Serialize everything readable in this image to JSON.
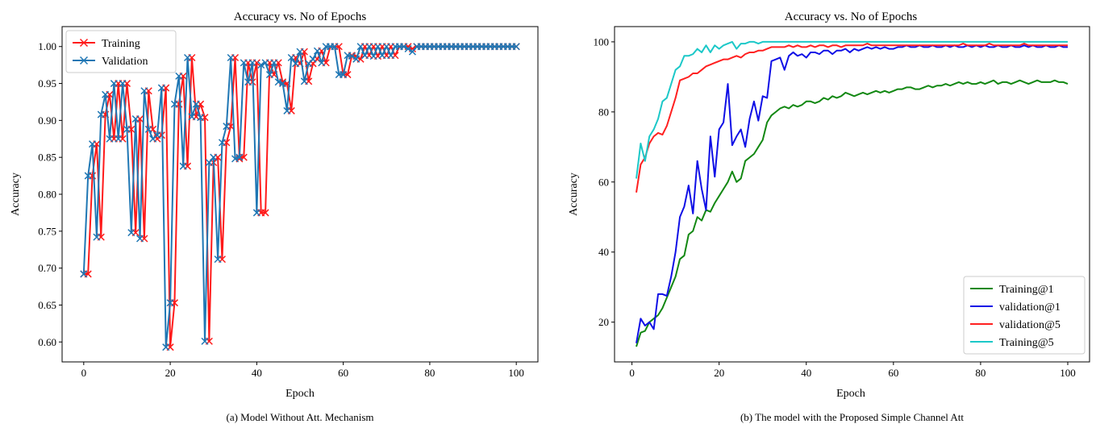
{
  "chart_data": [
    {
      "type": "line",
      "title": "Accuracy vs. No of Epochs",
      "xlabel": "Epoch",
      "ylabel": "Accuracy",
      "xlim": [
        -5,
        105
      ],
      "ylim": [
        0.573,
        1.027
      ],
      "xticks": [
        0,
        20,
        40,
        60,
        80,
        100
      ],
      "yticks": [
        0.6,
        0.65,
        0.7,
        0.75,
        0.8,
        0.85,
        0.9,
        0.95,
        1.0
      ],
      "ytick_labels": [
        "0.60",
        "0.65",
        "0.70",
        "0.75",
        "0.80",
        "0.85",
        "0.90",
        "0.95",
        "1.00"
      ],
      "grid": false,
      "legend_position": "top-left",
      "caption": "(a) Model Without Att. Mechanism",
      "x": [
        0,
        1,
        2,
        3,
        4,
        5,
        6,
        7,
        8,
        9,
        10,
        11,
        12,
        13,
        14,
        15,
        16,
        17,
        18,
        19,
        20,
        21,
        22,
        23,
        24,
        25,
        26,
        27,
        28,
        29,
        30,
        31,
        32,
        33,
        34,
        35,
        36,
        37,
        38,
        39,
        40,
        41,
        42,
        43,
        44,
        45,
        46,
        47,
        48,
        49,
        50,
        51,
        52,
        53,
        54,
        55,
        56,
        57,
        58,
        59,
        60,
        61,
        62,
        63,
        64,
        65,
        66,
        67,
        68,
        69,
        70,
        71,
        72,
        73,
        74,
        75,
        76,
        77,
        78,
        79,
        80,
        81,
        82,
        83,
        84,
        85,
        86,
        87,
        88,
        89,
        90,
        91,
        92,
        93,
        94,
        95,
        96,
        97,
        98,
        99,
        100
      ],
      "series": [
        {
          "name": "Training",
          "color": "#ff1a1a",
          "marker": "x",
          "values": [
            0.692,
            0.692,
            0.825,
            0.868,
            0.742,
            0.908,
            0.935,
            0.875,
            0.95,
            0.875,
            0.95,
            0.888,
            0.748,
            0.902,
            0.74,
            0.94,
            0.888,
            0.875,
            0.88,
            0.944,
            0.593,
            0.653,
            0.922,
            0.96,
            0.838,
            0.985,
            0.905,
            0.922,
            0.904,
            0.601,
            0.843,
            0.85,
            0.712,
            0.87,
            0.892,
            0.985,
            0.848,
            0.85,
            0.978,
            0.952,
            0.978,
            0.775,
            0.775,
            0.978,
            0.962,
            0.978,
            0.952,
            0.95,
            0.913,
            0.985,
            0.977,
            0.993,
            0.953,
            0.977,
            0.983,
            0.994,
            0.978,
            1.0,
            1.0,
            1.0,
            0.962,
            0.962,
            0.988,
            0.987,
            0.983,
            1.0,
            0.988,
            1.0,
            0.987,
            1.0,
            0.988,
            1.0,
            0.988,
            1.0,
            1.0,
            1.0,
            0.997,
            1.0,
            1.0,
            1.0,
            1.0,
            1.0,
            1.0,
            1.0,
            1.0,
            1.0,
            1.0,
            1.0,
            1.0,
            1.0,
            1.0,
            1.0,
            1.0,
            1.0,
            1.0,
            1.0,
            1.0,
            1.0,
            1.0,
            1.0,
            1.0
          ]
        },
        {
          "name": "Validation",
          "color": "#1f77b4",
          "marker": "x",
          "values": [
            0.692,
            0.825,
            0.868,
            0.742,
            0.908,
            0.935,
            0.875,
            0.95,
            0.875,
            0.95,
            0.888,
            0.748,
            0.902,
            0.74,
            0.94,
            0.888,
            0.875,
            0.88,
            0.944,
            0.593,
            0.653,
            0.922,
            0.96,
            0.838,
            0.985,
            0.905,
            0.922,
            0.904,
            0.601,
            0.843,
            0.85,
            0.712,
            0.87,
            0.892,
            0.985,
            0.848,
            0.85,
            0.978,
            0.952,
            0.978,
            0.775,
            0.975,
            0.978,
            0.962,
            0.978,
            0.952,
            0.95,
            0.913,
            0.985,
            0.977,
            0.993,
            0.953,
            0.977,
            0.983,
            0.994,
            0.978,
            1.0,
            1.0,
            1.0,
            0.962,
            0.962,
            0.988,
            0.987,
            0.983,
            1.0,
            0.988,
            1.0,
            0.987,
            1.0,
            0.988,
            1.0,
            0.988,
            1.0,
            1.0,
            1.0,
            0.997,
            0.993,
            1.0,
            1.0,
            1.0,
            1.0,
            1.0,
            1.0,
            1.0,
            1.0,
            1.0,
            1.0,
            1.0,
            1.0,
            1.0,
            1.0,
            1.0,
            1.0,
            1.0,
            1.0,
            1.0,
            1.0,
            1.0,
            1.0,
            1.0,
            1.0
          ]
        }
      ]
    },
    {
      "type": "line",
      "title": "Accuracy vs. No of Epochs",
      "xlabel": "Epoch",
      "ylabel": "Accuracy",
      "xlim": [
        -4,
        105
      ],
      "ylim": [
        8.65,
        104.35
      ],
      "xticks": [
        0,
        20,
        40,
        60,
        80,
        100
      ],
      "yticks": [
        20,
        40,
        60,
        80,
        100
      ],
      "ytick_labels": [
        "20",
        "40",
        "60",
        "80",
        "100"
      ],
      "grid": false,
      "legend_position": "bottom-right",
      "caption": "(b) The model with the Proposed Simple Channel Att",
      "x": [
        1,
        2,
        3,
        4,
        5,
        6,
        7,
        8,
        9,
        10,
        11,
        12,
        13,
        14,
        15,
        16,
        17,
        18,
        19,
        20,
        21,
        22,
        23,
        24,
        25,
        26,
        27,
        28,
        29,
        30,
        31,
        32,
        33,
        34,
        35,
        36,
        37,
        38,
        39,
        40,
        41,
        42,
        43,
        44,
        45,
        46,
        47,
        48,
        49,
        50,
        51,
        52,
        53,
        54,
        55,
        56,
        57,
        58,
        59,
        60,
        61,
        62,
        63,
        64,
        65,
        66,
        67,
        68,
        69,
        70,
        71,
        72,
        73,
        74,
        75,
        76,
        77,
        78,
        79,
        80,
        81,
        82,
        83,
        84,
        85,
        86,
        87,
        88,
        89,
        90,
        91,
        92,
        93,
        94,
        95,
        96,
        97,
        98,
        99,
        100
      ],
      "series": [
        {
          "name": "Training@1",
          "color": "#128812",
          "values": [
            13,
            17,
            17.5,
            20,
            21,
            22,
            24,
            27,
            30,
            33,
            38,
            39,
            45,
            46,
            50,
            49,
            52,
            51.5,
            54,
            56,
            58,
            60,
            63,
            60,
            61,
            66,
            67,
            68,
            70,
            72,
            77,
            79,
            80,
            81,
            81.5,
            81,
            82,
            81.5,
            82,
            83,
            83,
            82.5,
            83,
            84,
            83.5,
            84.5,
            84,
            84.5,
            85.5,
            85,
            84.5,
            85,
            85.5,
            85,
            85.5,
            86,
            85.5,
            86,
            85.5,
            86,
            86.5,
            86.5,
            87,
            87,
            86.5,
            86.5,
            87,
            87.5,
            87,
            87.5,
            87.5,
            88,
            87.5,
            88,
            88.5,
            88,
            88.5,
            88,
            88,
            88.5,
            88,
            88.5,
            89,
            88,
            88.5,
            88.5,
            88,
            88.5,
            89,
            88.5,
            88,
            88.5,
            89,
            88.5,
            88.5,
            88.5,
            89,
            88.5,
            88.5,
            88
          ]
        },
        {
          "name": "validation@1",
          "color": "#0f0fe6",
          "values": [
            14,
            21,
            19,
            20,
            18,
            28,
            28,
            27.5,
            33,
            40,
            50,
            53,
            59,
            51,
            66,
            58,
            52,
            73,
            61.5,
            75,
            77,
            88,
            70.5,
            73,
            75,
            70,
            78,
            83,
            77.5,
            84.5,
            84,
            94.5,
            95,
            95.5,
            92,
            96,
            97,
            96,
            96.5,
            95.5,
            97,
            97,
            96.5,
            97.5,
            97.5,
            96.5,
            97.5,
            97.5,
            98,
            97,
            98,
            97.5,
            98,
            98.5,
            98,
            98.5,
            98,
            98.5,
            98,
            98,
            98.5,
            98.5,
            99,
            98.5,
            98.5,
            99,
            98.5,
            98.5,
            99,
            98.5,
            98.5,
            99,
            98.5,
            99,
            98.5,
            98.5,
            99,
            98.5,
            99,
            98.5,
            99,
            98.5,
            98.5,
            99,
            98.5,
            98.5,
            99,
            98.5,
            98.5,
            99,
            98.5,
            99,
            98.5,
            98.5,
            99,
            98.5,
            98.5,
            99,
            98.5,
            98.5
          ]
        },
        {
          "name": "validation@5",
          "color": "#ff2020",
          "values": [
            57,
            65,
            67,
            71,
            73,
            74,
            73.5,
            76,
            80,
            84,
            89,
            89.5,
            90,
            91,
            91,
            92,
            93,
            93.5,
            94,
            94.5,
            95,
            95,
            95.5,
            96,
            95.5,
            96.5,
            97,
            97,
            97.5,
            97.5,
            98,
            98.5,
            98.5,
            98.5,
            98.5,
            99,
            98.5,
            99,
            98.5,
            98.5,
            99,
            98.5,
            99,
            99,
            98.5,
            99,
            99,
            98.5,
            99,
            99,
            99,
            99,
            99,
            99.5,
            99,
            99,
            99,
            99,
            99,
            99,
            99,
            99,
            99,
            99,
            99,
            99,
            99,
            99,
            99,
            99,
            99,
            99,
            99,
            99,
            99,
            99.5,
            99,
            99,
            99,
            99,
            99,
            99.5,
            99,
            99,
            99,
            99,
            99,
            99,
            99,
            99.5,
            99,
            99,
            99,
            99,
            99,
            99,
            99,
            99,
            99,
            99
          ]
        },
        {
          "name": "Training@5",
          "color": "#1cc8c8",
          "values": [
            61,
            71,
            66,
            73,
            75,
            78,
            83,
            84,
            88,
            92,
            93,
            96,
            96,
            96.5,
            98,
            97,
            99,
            97,
            99,
            98,
            99,
            99.5,
            100,
            98,
            99.5,
            99.5,
            100,
            100,
            99.5,
            100,
            100,
            100,
            100,
            100,
            100,
            100,
            100,
            100,
            100,
            100,
            100,
            100,
            100,
            100,
            100,
            100,
            100,
            100,
            100,
            100,
            100,
            100,
            100,
            100,
            100,
            100,
            100,
            100,
            100,
            100,
            100,
            100,
            100,
            100,
            100,
            100,
            100,
            100,
            100,
            100,
            100,
            100,
            100,
            100,
            100,
            100,
            100,
            100,
            100,
            100,
            100,
            100,
            100,
            100,
            100,
            100,
            100,
            100,
            100,
            100,
            100,
            100,
            100,
            100,
            100,
            100,
            100,
            100,
            100,
            100
          ]
        }
      ]
    }
  ]
}
